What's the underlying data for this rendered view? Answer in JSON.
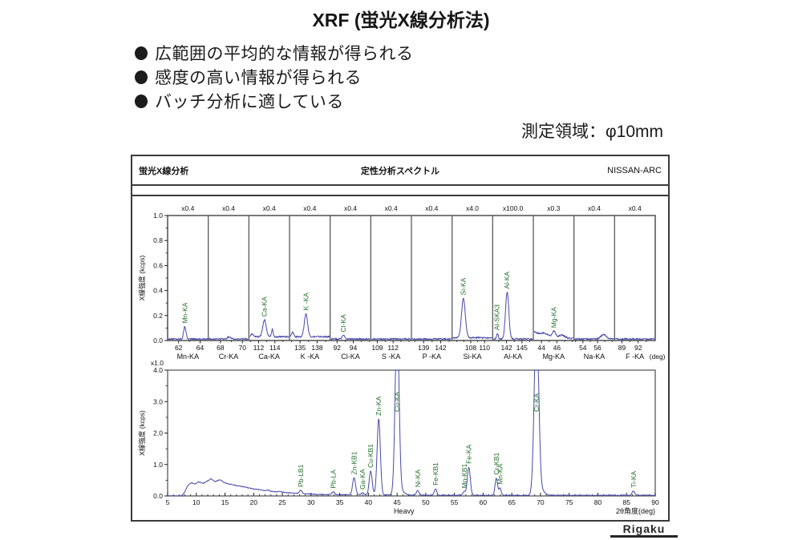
{
  "page": {
    "title": "XRF (蛍光X線分析法)"
  },
  "bullets": [
    {
      "label": "広範囲の平均的な情報が得られる"
    },
    {
      "label": "感度の高い情報が得られる"
    },
    {
      "label": "バッチ分析に適している"
    }
  ],
  "measurement_area": "測定領域：φ10mm",
  "report": {
    "left": "蛍光X線分析",
    "center": "定性分析スペクトル",
    "right": "NISSAN-ARC"
  },
  "logo": "Rigaku",
  "colors": {
    "line": "#4848ac",
    "peak_label": "#1f6e28",
    "frame": "#3a3a3a",
    "grid": "#5a5a5a",
    "axis": "#222222",
    "text": "#111111"
  },
  "chart_data": [
    {
      "type": "line",
      "id": "element-segment-scan",
      "ylabel": "X線強度 (kcps)",
      "ylim": [
        0,
        1.0
      ],
      "yticks": [
        "0.0",
        "0.2",
        "0.4",
        "0.6",
        "0.8",
        "1.0"
      ],
      "segments": [
        {
          "mult": "x0.4",
          "name": "Mn-KA",
          "ticks": [
            {
              "v": "62",
              "f": 0.27
            },
            {
              "v": "64",
              "f": 0.8
            }
          ],
          "base": 0.012,
          "peaks": [
            {
              "f": 0.42,
              "h": 0.1,
              "w": 0.03,
              "label": "Mn-KA"
            }
          ]
        },
        {
          "mult": "x0.4",
          "name": "Cr-KA",
          "ticks": [
            {
              "v": "68",
              "f": 0.3
            },
            {
              "v": "70",
              "f": 0.84
            }
          ],
          "base": 0.012,
          "peaks": [
            {
              "f": 0.52,
              "h": 0.018,
              "w": 0.045
            }
          ]
        },
        {
          "mult": "x0.4",
          "name": "Ca-KA",
          "ticks": [
            {
              "v": "112",
              "f": 0.24
            },
            {
              "v": "114",
              "f": 0.64
            }
          ],
          "base": 0.03,
          "peaks": [
            {
              "f": 0.38,
              "h": 0.135,
              "w": 0.045,
              "label": "Ca-KA"
            },
            {
              "f": 0.58,
              "h": 0.062,
              "w": 0.02
            },
            {
              "f": 0.06,
              "h": 0.02,
              "w": 0.03
            }
          ]
        },
        {
          "mult": "x0.4",
          "name": "K -KA",
          "ticks": [
            {
              "v": "135",
              "f": 0.26
            },
            {
              "v": "138",
              "f": 0.68
            }
          ],
          "base": 0.03,
          "peaks": [
            {
              "f": 0.4,
              "h": 0.185,
              "w": 0.042,
              "label": "K -KA"
            },
            {
              "f": 0.06,
              "h": 0.035,
              "w": 0.028
            }
          ]
        },
        {
          "mult": "x0.4",
          "name": "Cl-KA",
          "ticks": [
            {
              "v": "92",
              "f": 0.17
            },
            {
              "v": "94",
              "f": 0.57
            }
          ],
          "base": 0.012,
          "peaks": [
            {
              "f": 0.32,
              "h": 0.03,
              "w": 0.03,
              "label": "Cl-KA"
            }
          ]
        },
        {
          "mult": "x0.4",
          "name": "S -KA",
          "ticks": [
            {
              "v": "109",
              "f": 0.16
            },
            {
              "v": "112",
              "f": 0.55
            }
          ],
          "base": 0.012,
          "peaks": []
        },
        {
          "mult": "x0.4",
          "name": "P -KA",
          "ticks": [
            {
              "v": "139",
              "f": 0.3
            },
            {
              "v": "142",
              "f": 0.72
            }
          ],
          "base": 0.012,
          "peaks": []
        },
        {
          "mult": "x4.0",
          "name": "Si-KA",
          "ticks": [
            {
              "v": "108",
              "f": 0.46
            },
            {
              "v": "110",
              "f": 0.8
            }
          ],
          "base": 0.022,
          "peaks": [
            {
              "f": 0.27,
              "h": 0.315,
              "w": 0.048,
              "label": "Si-KA"
            }
          ]
        },
        {
          "mult": "x100.0",
          "name": "Al-KA",
          "ticks": [
            {
              "v": "142",
              "f": 0.34
            },
            {
              "v": "145",
              "f": 0.72
            }
          ],
          "base": 0.012,
          "peaks": [
            {
              "f": 0.1,
              "h": 0.045,
              "w": 0.022,
              "label": "Al-SKA3"
            },
            {
              "f": 0.35,
              "h": 0.375,
              "w": 0.042,
              "label": "Al-KA"
            }
          ]
        },
        {
          "mult": "x0.3",
          "name": "Mg-KA",
          "ticks": [
            {
              "v": "44",
              "f": 0.2
            },
            {
              "v": "46",
              "f": 0.58
            }
          ],
          "base": 0.03,
          "bl": [
            [
              0,
              0.068
            ],
            [
              0.15,
              0.055
            ],
            [
              0.25,
              0.062
            ],
            [
              0.35,
              0.048
            ],
            [
              0.45,
              0.04
            ],
            [
              0.52,
              0.055
            ],
            [
              0.6,
              0.035
            ],
            [
              0.72,
              0.042
            ],
            [
              0.85,
              0.022
            ],
            [
              1,
              0.015
            ]
          ],
          "peaks": [
            {
              "f": 0.5,
              "h": 0.025,
              "w": 0.03,
              "label": "Mg-KA"
            }
          ]
        },
        {
          "mult": "x0.4",
          "name": "Na-KA",
          "ticks": [
            {
              "v": "54",
              "f": 0.22
            },
            {
              "v": "56",
              "f": 0.58
            }
          ],
          "base": 0.012,
          "peaks": [
            {
              "f": 0.74,
              "h": 0.035,
              "w": 0.07
            }
          ]
        },
        {
          "mult": "x0.4",
          "name": "F -KA",
          "unit": "(deg)",
          "ticks": [
            {
              "v": "89",
              "f": 0.18
            },
            {
              "v": "92",
              "f": 0.58
            }
          ],
          "base": 0.012,
          "peaks": []
        }
      ]
    },
    {
      "type": "line",
      "id": "survey-scan",
      "ylabel": "X線強度 (kcps)",
      "scale_label": "x1.0",
      "xlabel_center": "Heavy",
      "xlabel_right": "2θ角度(deg)",
      "xlim": [
        5,
        90
      ],
      "ylim": [
        0,
        4.0
      ],
      "yticks": [
        "0.0",
        "1.0",
        "2.0",
        "3.0",
        "4.0"
      ],
      "xticks": [
        5,
        10,
        15,
        20,
        25,
        30,
        35,
        40,
        45,
        50,
        55,
        60,
        65,
        70,
        75,
        80,
        85,
        90
      ],
      "continuum": [
        [
          5,
          0.0
        ],
        [
          7.4,
          0.0
        ],
        [
          8.0,
          0.12
        ],
        [
          8.4,
          0.3
        ],
        [
          8.8,
          0.38
        ],
        [
          9.2,
          0.42
        ],
        [
          9.8,
          0.38
        ],
        [
          10.4,
          0.45
        ],
        [
          10.8,
          0.42
        ],
        [
          11.2,
          0.4
        ],
        [
          11.8,
          0.47
        ],
        [
          12.3,
          0.5
        ],
        [
          12.5,
          0.55
        ],
        [
          13.0,
          0.48
        ],
        [
          13.4,
          0.46
        ],
        [
          13.9,
          0.5
        ],
        [
          14.2,
          0.52
        ],
        [
          14.8,
          0.43
        ],
        [
          15.3,
          0.4
        ],
        [
          16,
          0.37
        ],
        [
          17,
          0.33
        ],
        [
          18,
          0.3
        ],
        [
          19,
          0.26
        ],
        [
          20,
          0.22
        ],
        [
          21,
          0.2
        ],
        [
          22,
          0.17
        ],
        [
          22.5,
          0.18
        ],
        [
          23,
          0.15
        ],
        [
          24,
          0.13
        ],
        [
          24.6,
          0.14
        ],
        [
          25.5,
          0.11
        ],
        [
          27,
          0.09
        ],
        [
          29,
          0.07
        ],
        [
          31,
          0.05
        ],
        [
          33,
          0.045
        ],
        [
          35,
          0.04
        ],
        [
          38,
          0.035
        ],
        [
          42,
          0.03
        ],
        [
          47,
          0.025
        ],
        [
          55,
          0.02
        ],
        [
          65,
          0.02
        ],
        [
          75,
          0.02
        ],
        [
          88,
          0.02
        ],
        [
          90,
          0.02
        ]
      ],
      "peaks": [
        {
          "x": 28.2,
          "h": 0.1,
          "w": 0.22,
          "label": "Pb-LB1"
        },
        {
          "x": 33.9,
          "h": 0.09,
          "w": 0.22,
          "label": "Pb-LA"
        },
        {
          "x": 37.5,
          "h": 0.54,
          "w": 0.26,
          "label": "Zn-KB1"
        },
        {
          "x": 39.0,
          "h": 0.07,
          "w": 0.22,
          "label": "Ga-KA"
        },
        {
          "x": 40.4,
          "h": 0.76,
          "w": 0.26,
          "label": "Cu-KB1"
        },
        {
          "x": 41.8,
          "h": 2.42,
          "w": 0.28,
          "label": "Zn-KA"
        },
        {
          "x": 45.0,
          "h": 5.8,
          "w": 0.33,
          "label": "Cu-KA",
          "clip": true
        },
        {
          "x": 45.9,
          "h": 0.1,
          "w": 0.5
        },
        {
          "x": 48.6,
          "h": 0.15,
          "w": 0.22,
          "label": "Ni-KA"
        },
        {
          "x": 51.7,
          "h": 0.21,
          "w": 0.22,
          "label": "Fe-KB1"
        },
        {
          "x": 56.7,
          "h": 0.12,
          "w": 0.2,
          "label": "Mn-KB1"
        },
        {
          "x": 57.5,
          "h": 0.9,
          "w": 0.26,
          "label": "Fe-KA"
        },
        {
          "x": 62.3,
          "h": 0.55,
          "w": 0.22,
          "label": "Cr-KB1"
        },
        {
          "x": 62.95,
          "h": 0.24,
          "w": 0.18,
          "label": "Mn-KA"
        },
        {
          "x": 69.3,
          "h": 5.8,
          "w": 0.38,
          "label": "Cr-KA",
          "clip": true
        },
        {
          "x": 70.3,
          "h": 0.12,
          "w": 0.55
        },
        {
          "x": 86.2,
          "h": 0.14,
          "w": 0.22,
          "label": "Ti-KA"
        }
      ]
    }
  ]
}
